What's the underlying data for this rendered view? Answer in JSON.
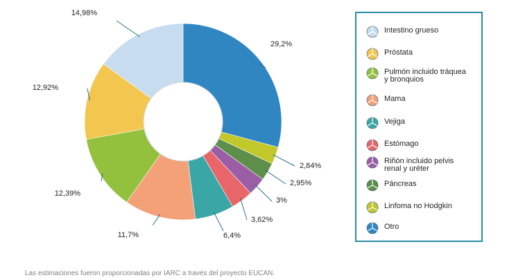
{
  "chart_data": {
    "type": "pie",
    "subtype": "donut",
    "categories": [
      "Intestino grueso",
      "Próstata",
      "Pulmón incluido tráquea\ny bronquios",
      "Mama",
      "Vejiga",
      "Estómago",
      "Riñón incluido pelvis\nrenal y uréter",
      "Páncreas",
      "Linfoma no Hodgkin",
      "Otro"
    ],
    "values": [
      14.98,
      12.92,
      12.39,
      11.7,
      6.4,
      3.62,
      3,
      2.95,
      2.84,
      29.2
    ],
    "value_labels": [
      "14,98%",
      "12,92%",
      "12,39%",
      "11,7%",
      "6,4%",
      "3,62%",
      "3%",
      "2,95%",
      "2,84%",
      "29,2%"
    ],
    "colors": [
      "#c7dcef",
      "#f2c64f",
      "#93c13e",
      "#f4a178",
      "#3aa6a6",
      "#e8656a",
      "#9b5ea6",
      "#5d8f4a",
      "#c2c82a",
      "#2f86c1"
    ],
    "legend_position": "right"
  },
  "caption": "Las estimaciones fueron proporcionadas por IARC a través del proyecto EUCAN."
}
